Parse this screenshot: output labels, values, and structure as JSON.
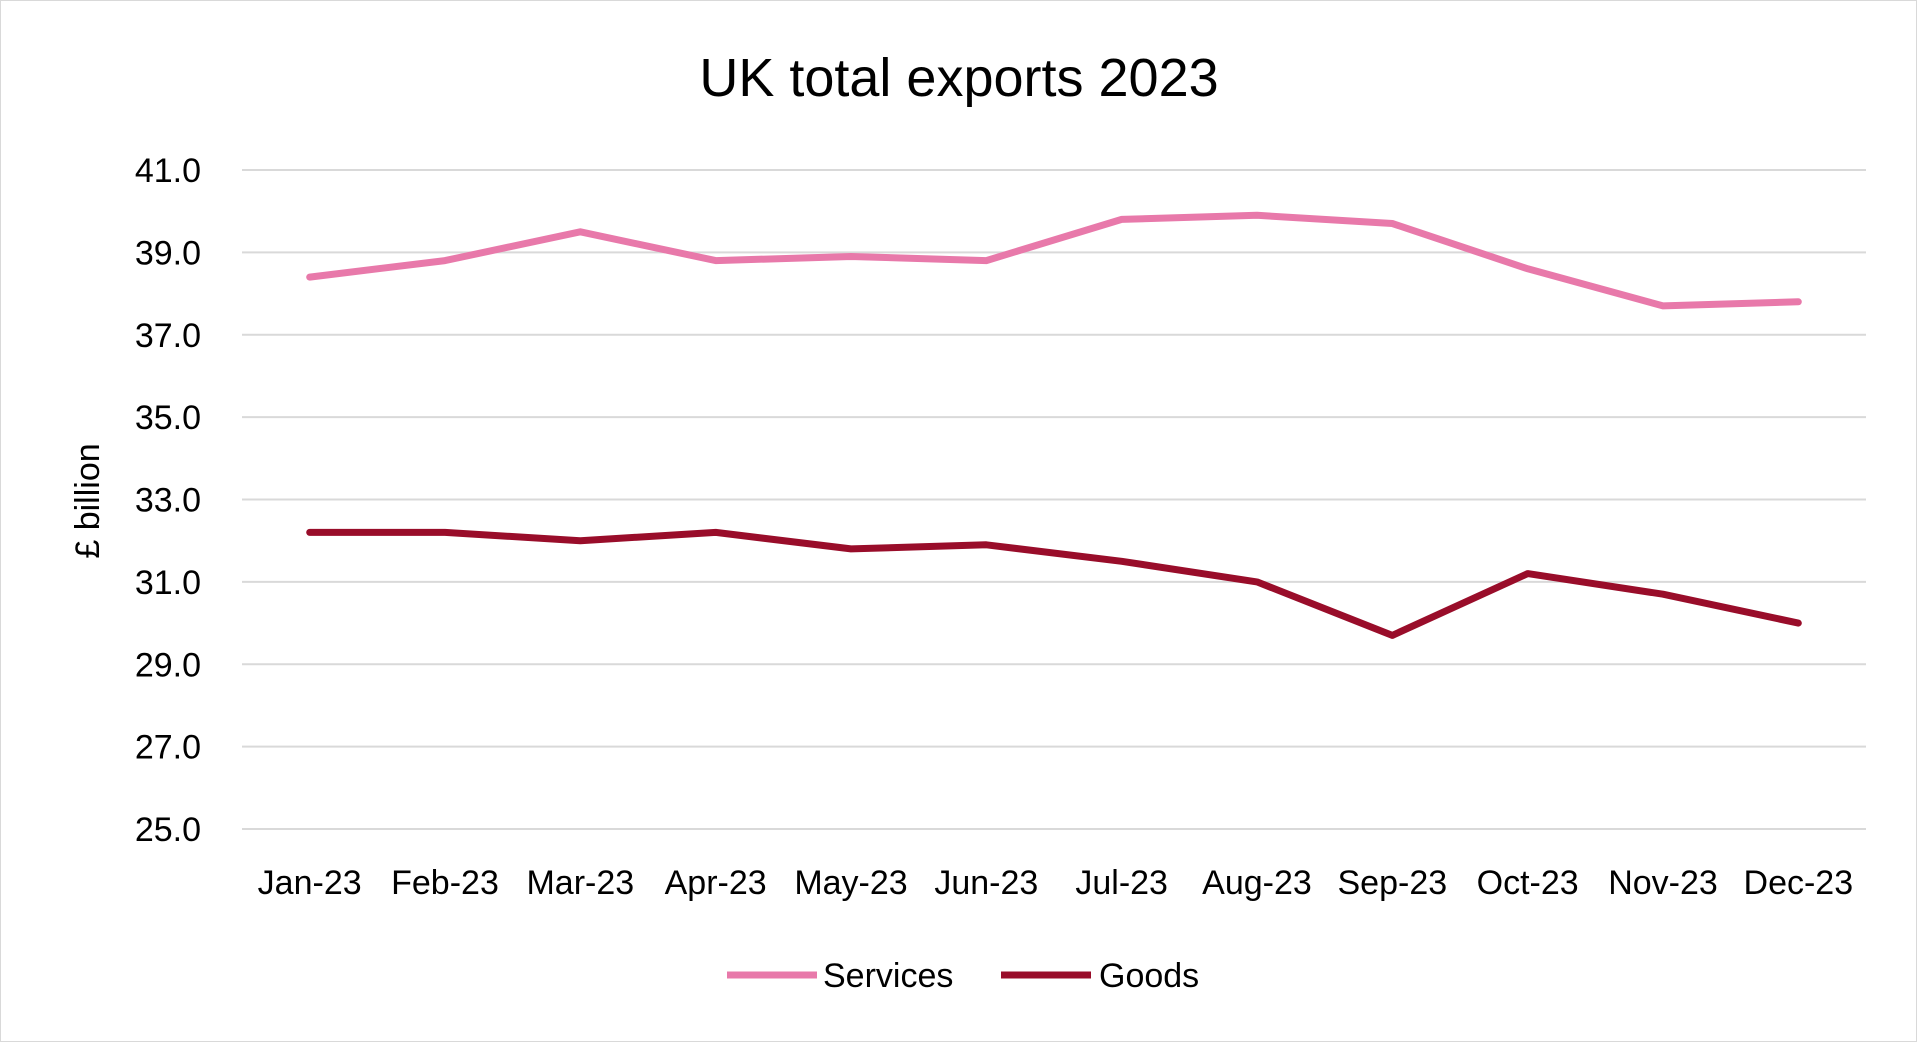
{
  "chart_data": {
    "type": "line",
    "title": "UK total exports 2023",
    "xlabel": "",
    "ylabel": "£ billion",
    "categories": [
      "Jan-23",
      "Feb-23",
      "Mar-23",
      "Apr-23",
      "May-23",
      "Jun-23",
      "Jul-23",
      "Aug-23",
      "Sep-23",
      "Oct-23",
      "Nov-23",
      "Dec-23"
    ],
    "ylim": [
      25.0,
      41.0
    ],
    "yticks": [
      "25.0",
      "27.0",
      "29.0",
      "31.0",
      "33.0",
      "35.0",
      "37.0",
      "39.0",
      "41.0"
    ],
    "ytick_values": [
      25,
      27,
      29,
      31,
      33,
      35,
      37,
      39,
      41
    ],
    "grid": "horizontal",
    "legend_position": "bottom",
    "series": [
      {
        "name": "Services",
        "color": "#e879aa",
        "values": [
          38.4,
          38.8,
          39.5,
          38.8,
          38.9,
          38.8,
          39.8,
          39.9,
          39.7,
          38.6,
          37.7,
          37.8
        ]
      },
      {
        "name": "Goods",
        "color": "#990d2a",
        "values": [
          32.2,
          32.2,
          32.0,
          32.2,
          31.8,
          31.9,
          31.5,
          31.0,
          29.7,
          31.2,
          30.7,
          30.0
        ]
      }
    ]
  }
}
